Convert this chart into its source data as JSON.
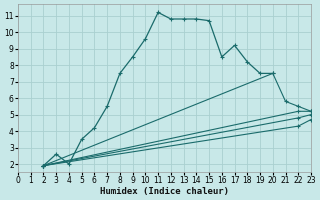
{
  "xlabel": "Humidex (Indice chaleur)",
  "background_color": "#c8e8e8",
  "grid_color": "#aad0d0",
  "line_color": "#1a6b6b",
  "xlim": [
    0,
    23
  ],
  "ylim": [
    1.5,
    11.7
  ],
  "xticks": [
    0,
    1,
    2,
    3,
    4,
    5,
    6,
    7,
    8,
    9,
    10,
    11,
    12,
    13,
    14,
    15,
    16,
    17,
    18,
    19,
    20,
    21,
    22,
    23
  ],
  "yticks": [
    2,
    3,
    4,
    5,
    6,
    7,
    8,
    9,
    10,
    11
  ],
  "series1_x": [
    2,
    3,
    4,
    5,
    6,
    7,
    8,
    9,
    10,
    11,
    12,
    13,
    14,
    15,
    16,
    17,
    18,
    19,
    20
  ],
  "series1_y": [
    1.9,
    2.6,
    2.0,
    3.5,
    4.2,
    5.5,
    7.5,
    8.5,
    9.6,
    11.2,
    10.8,
    10.8,
    10.8,
    10.7,
    8.5,
    9.2,
    8.2,
    7.5,
    7.5
  ],
  "series2_x": [
    2,
    20,
    21,
    22,
    23
  ],
  "series2_y": [
    1.9,
    7.5,
    5.8,
    5.5,
    5.2
  ],
  "series3_x": [
    2,
    22,
    23
  ],
  "series3_y": [
    1.9,
    5.2,
    5.2
  ],
  "series4_x": [
    2,
    22,
    23
  ],
  "series4_y": [
    1.9,
    4.8,
    5.0
  ],
  "series5_x": [
    2,
    22,
    23
  ],
  "series5_y": [
    1.9,
    4.3,
    4.7
  ]
}
